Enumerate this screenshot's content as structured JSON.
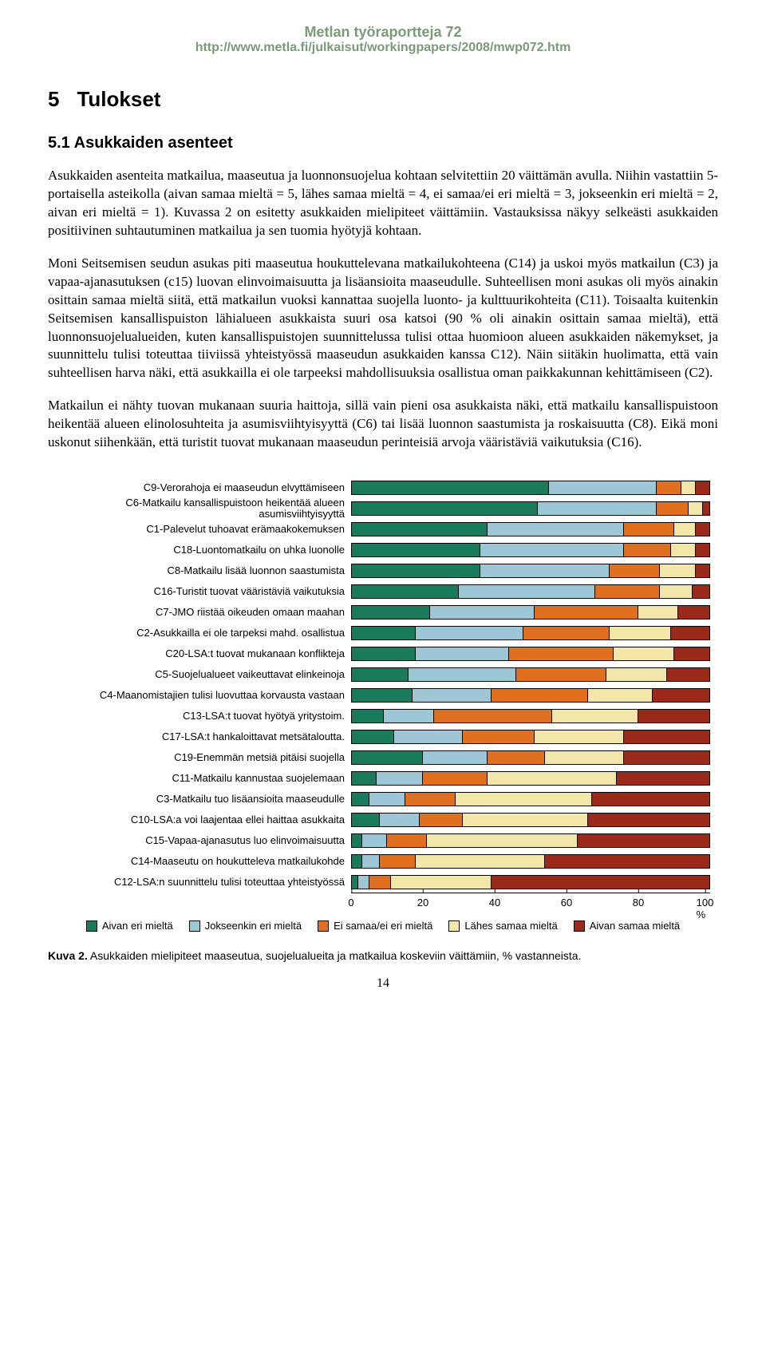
{
  "header": {
    "title": "Metlan työraportteja 72",
    "url": "http://www.metla.fi/julkaisut/workingpapers/2008/mwp072.htm"
  },
  "section": {
    "num": "5",
    "title": "Tulokset"
  },
  "subsection": {
    "num": "5.1",
    "title": "Asukkaiden asenteet"
  },
  "paragraphs": {
    "p1": "Asukkaiden asenteita matkailua, maaseutua ja luonnonsuojelua kohtaan selvitettiin 20 väittämän avulla. Niihin vastattiin 5-portaisella asteikolla (aivan samaa mieltä = 5, lähes samaa mieltä = 4, ei samaa/ei eri mieltä = 3, jokseenkin eri mieltä = 2, aivan eri mieltä = 1). Kuvassa 2 on esitetty asukkaiden mielipiteet väittämiin. Vastauksissa näkyy selkeästi asukkaiden positiivinen suhtautuminen matkailua ja sen tuomia hyötyjä kohtaan.",
    "p2": "Moni Seitsemisen seudun asukas piti maaseutua houkuttelevana matkailukohteena (C14) ja uskoi myös matkailun (C3) ja vapaa-ajanasutuksen (c15) luovan elinvoimaisuutta ja lisäansioita maaseudulle. Suhteellisen moni asukas oli myös ainakin osittain samaa mieltä siitä, että matkailun vuoksi kannattaa suojella luonto- ja kulttuurikohteita (C11). Toisaalta kuitenkin Seitsemisen kansallispuiston lähialueen asukkaista suuri osa katsoi (90 % oli ainakin osittain samaa mieltä), että luonnonsuojelualueiden, kuten kansallispuistojen suunnittelussa tulisi ottaa huomioon alueen asukkaiden näkemykset, ja suunnittelu tulisi toteuttaa tiiviissä yhteistyössä maaseudun asukkaiden kanssa C12). Näin siitäkin huolimatta, että vain suhteellisen harva näki, että asukkailla ei ole tarpeeksi mahdollisuuksia osallistua oman paikkakunnan kehittämiseen (C2).",
    "p3": "Matkailun ei nähty tuovan mukanaan suuria haittoja, sillä vain pieni osa asukkaista näki, että matkailu kansallispuistoon heikentää alueen elinolosuhteita ja asumisviihtyisyyttä (C6) tai lisää luonnon saastumista ja roskaisuutta (C8). Eikä moni uskonut siihenkään, että turistit tuovat mukanaan maaseudun perinteisiä arvoja vääristäviä vaikutuksia (C16)."
  },
  "chart": {
    "type": "stacked-bar-horizontal",
    "colors": {
      "c1": "#1a7a5c",
      "c2": "#9dc6d6",
      "c3": "#e07020",
      "c4": "#f2e7a8",
      "c5": "#9c2a1a"
    },
    "legend_labels": {
      "c1": "Aivan eri mieltä",
      "c2": "Jokseenkin eri mieltä",
      "c3": "Ei samaa/ei eri mieltä",
      "c4": "Lähes samaa mieltä",
      "c5": "Aivan samaa mieltä"
    },
    "xaxis": {
      "min": 0,
      "max": 100,
      "ticks": [
        0,
        20,
        40,
        60,
        80
      ],
      "last_label": "100 %"
    },
    "rows": [
      {
        "label": "C9-Verorahoja ei maaseudun elvyttämiseen",
        "v": [
          55,
          30,
          7,
          4,
          4
        ]
      },
      {
        "label": "C6-Matkailu kansallispuistoon heikentää alueen asumisviihtyisyyttä",
        "v": [
          52,
          33,
          9,
          4,
          2
        ]
      },
      {
        "label": "C1-Palevelut tuhoavat erämaakokemuksen",
        "v": [
          38,
          38,
          14,
          6,
          4
        ]
      },
      {
        "label": "C18-Luontomatkailu on uhka luonolle",
        "v": [
          36,
          40,
          13,
          7,
          4
        ]
      },
      {
        "label": "C8-Matkailu lisää luonnon saastumista",
        "v": [
          36,
          36,
          14,
          10,
          4
        ]
      },
      {
        "label": "C16-Turistit tuovat vääristäviä vaikutuksia",
        "v": [
          30,
          38,
          18,
          9,
          5
        ]
      },
      {
        "label": "C7-JMO riistää oikeuden omaan maahan",
        "v": [
          22,
          29,
          29,
          11,
          9
        ]
      },
      {
        "label": "C2-Asukkailla ei ole tarpeksi mahd. osallistua",
        "v": [
          18,
          30,
          24,
          17,
          11
        ]
      },
      {
        "label": "C20-LSA:t tuovat mukanaan konflikteja",
        "v": [
          18,
          26,
          29,
          17,
          10
        ]
      },
      {
        "label": "C5-Suojelualueet vaikeuttavat elinkeinoja",
        "v": [
          16,
          30,
          25,
          17,
          12
        ]
      },
      {
        "label": "C4-Maanomistajien tulisi luovuttaa korvausta vastaan",
        "v": [
          17,
          22,
          27,
          18,
          16
        ]
      },
      {
        "label": "C13-LSA:t tuovat hyötyä yritystoim.",
        "v": [
          9,
          14,
          33,
          24,
          20
        ]
      },
      {
        "label": "C17-LSA:t hankaloittavat metsätaloutta.",
        "v": [
          12,
          19,
          20,
          25,
          24
        ]
      },
      {
        "label": "C19-Enemmän metsiä pitäisi suojella",
        "v": [
          20,
          18,
          16,
          22,
          24
        ]
      },
      {
        "label": "C11-Matkailu kannustaa suojelemaan",
        "v": [
          7,
          13,
          18,
          36,
          26
        ]
      },
      {
        "label": "C3-Matkailu tuo lisäansioita maaseudulle",
        "v": [
          5,
          10,
          14,
          38,
          33
        ]
      },
      {
        "label": "C10-LSA:a voi laajentaa ellei haittaa asukkaita",
        "v": [
          8,
          11,
          12,
          35,
          34
        ]
      },
      {
        "label": "C15-Vapaa-ajanasutus luo elinvoimaisuutta",
        "v": [
          3,
          7,
          11,
          42,
          37
        ]
      },
      {
        "label": "C14-Maaseutu on houkutteleva matkailukohde",
        "v": [
          3,
          5,
          10,
          36,
          46
        ]
      },
      {
        "label": "C12-LSA:n suunnittelu tulisi toteuttaa yhteistyössä",
        "v": [
          2,
          3,
          6,
          28,
          61
        ]
      }
    ]
  },
  "caption": {
    "bold": "Kuva 2.",
    "text": " Asukkaiden mielipiteet maaseutua, suojelualueita ja matkailua koskeviin väittämiin, % vastanneista."
  },
  "pagenum": "14"
}
